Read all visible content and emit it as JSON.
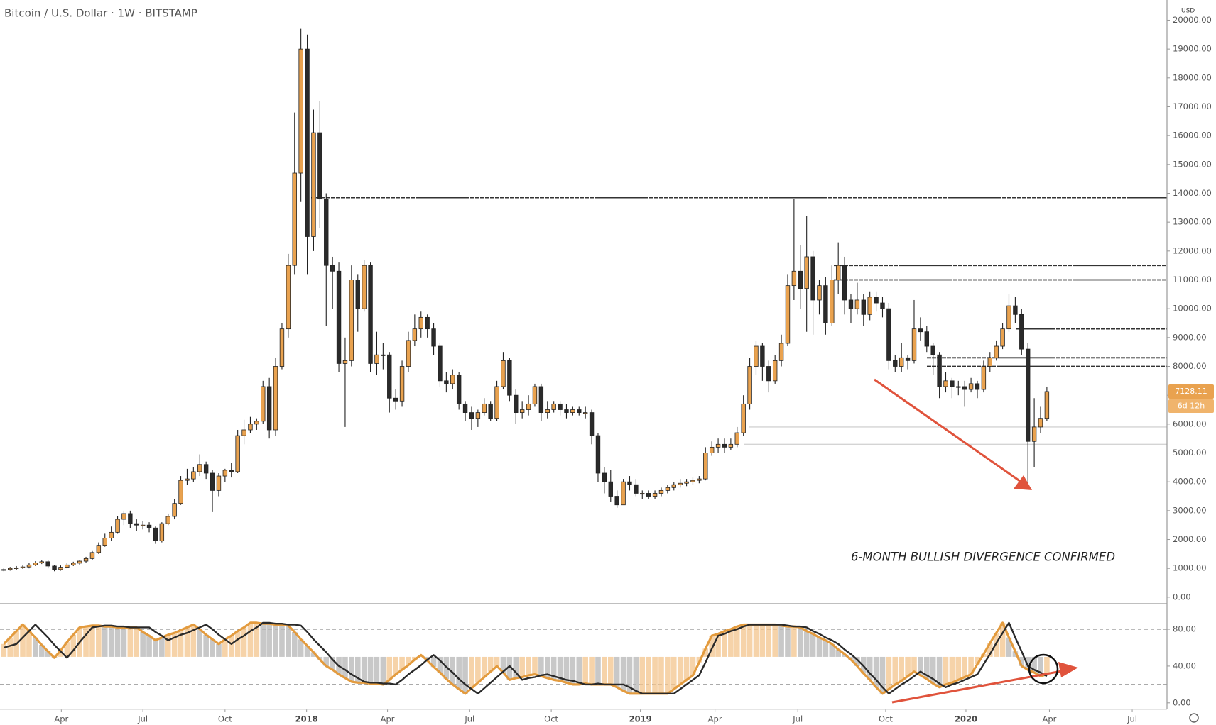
{
  "chart_data": [
    {
      "type": "candlestick",
      "title": "Bitcoin / U.S. Dollar · 1W · BITSTAMP",
      "currency": "USD",
      "annotation": "6-MONTH BULLISH DIVERGENCE CONFIRMED",
      "last_price": 7128.11,
      "countdown": "6d 12h",
      "up_color": "#e9a24f",
      "down_color": "#2a2a2a",
      "levels": [
        13850,
        11500,
        11000,
        9300,
        8300,
        8000
      ],
      "faint_levels": [
        5900,
        5300
      ],
      "xlim": [
        -0.6,
        184
      ],
      "xticks": [
        {
          "value": 9.1,
          "label": "Apr"
        },
        {
          "value": 22,
          "label": "Jul"
        },
        {
          "value": 35,
          "label": "Oct"
        },
        {
          "value": 47.9,
          "label": "2018"
        },
        {
          "value": 60.7,
          "label": "Apr"
        },
        {
          "value": 73.7,
          "label": "Jul"
        },
        {
          "value": 86.6,
          "label": "Oct"
        },
        {
          "value": 100.7,
          "label": "2019"
        },
        {
          "value": 112.5,
          "label": "Apr"
        },
        {
          "value": 125.6,
          "label": "Jul"
        },
        {
          "value": 139.5,
          "label": "Oct"
        },
        {
          "value": 152.2,
          "label": "2020"
        },
        {
          "value": 165.4,
          "label": "Apr"
        },
        {
          "value": 178.5,
          "label": "Jul"
        }
      ],
      "ylim": [
        -200,
        20700
      ],
      "yticks": [
        {
          "value": 0,
          "label": "0.00"
        },
        {
          "value": 1000,
          "label": "1000.00"
        },
        {
          "value": 2000,
          "label": "2000.00"
        },
        {
          "value": 3000,
          "label": "3000.00"
        },
        {
          "value": 4000,
          "label": "4000.00"
        },
        {
          "value": 5000,
          "label": "5000.00"
        },
        {
          "value": 6000,
          "label": "6000.00"
        },
        {
          "value": 7000,
          "label": "7000.00"
        },
        {
          "value": 8000,
          "label": "8000.00"
        },
        {
          "value": 9000,
          "label": "9000.00"
        },
        {
          "value": 10000,
          "label": "10000.00"
        },
        {
          "value": 11000,
          "label": "11000.00"
        },
        {
          "value": 12000,
          "label": "12000.00"
        },
        {
          "value": 13000,
          "label": "13000.00"
        },
        {
          "value": 14000,
          "label": "14000.00"
        },
        {
          "value": 15000,
          "label": "15000.00"
        },
        {
          "value": 16000,
          "label": "16000.00"
        },
        {
          "value": 17000,
          "label": "17000.00"
        },
        {
          "value": 18000,
          "label": "18000.00"
        },
        {
          "value": 19000,
          "label": "19000.00"
        },
        {
          "value": 20000,
          "label": "20000.00"
        }
      ],
      "open": [
        950,
        960,
        1000,
        1020,
        1050,
        1120,
        1190,
        1230,
        1080,
        960,
        1040,
        1120,
        1180,
        1250,
        1340,
        1550,
        1800,
        2050,
        2250,
        2700,
        2900,
        2550,
        2500,
        2500,
        2400,
        1950,
        2550,
        2800,
        3250,
        4050,
        4100,
        4350,
        4600,
        4300,
        3700,
        4200,
        4400,
        4350,
        5600,
        5800,
        6000,
        6100,
        7300,
        5800,
        8000,
        9300,
        11500,
        14700,
        19000,
        12500,
        16100,
        13800,
        11500,
        11300,
        8100,
        8200,
        11000,
        10000,
        11500,
        8100,
        8400,
        8400,
        6900,
        6800,
        8000,
        8900,
        9300,
        9700,
        9300,
        8700,
        7500,
        7400,
        7700,
        6700,
        6400,
        6200,
        6400,
        6700,
        6200,
        7300,
        8200,
        7000,
        6400,
        6500,
        6700,
        7300,
        6400,
        6500,
        6700,
        6500,
        6400,
        6500,
        6400,
        6400,
        5600,
        4300,
        4000,
        3500,
        3200,
        4000,
        3900,
        3600,
        3600,
        3500,
        3600,
        3700,
        3800,
        3900,
        3950,
        4000,
        4050,
        4100,
        5000,
        5200,
        5300,
        5200,
        5300,
        5700,
        6700,
        8000,
        8700,
        8000,
        7500,
        8200,
        8800,
        10800,
        11300,
        10700,
        11800,
        10300,
        10800,
        9500,
        11000,
        11500,
        10300,
        10000,
        10300,
        9800,
        10400,
        10200,
        10000,
        8200,
        8000,
        8300,
        8200,
        9300,
        9200,
        8700,
        8400,
        7300,
        7500,
        7300,
        7300,
        7200,
        7400,
        7200,
        8000,
        8300,
        8700,
        9300,
        10100,
        9800,
        8600,
        5400,
        5900,
        6200
      ],
      "high": [
        1000,
        1050,
        1080,
        1100,
        1180,
        1250,
        1300,
        1280,
        1120,
        1100,
        1180,
        1230,
        1300,
        1400,
        1600,
        1900,
        2200,
        2450,
        2800,
        3000,
        3000,
        2700,
        2650,
        2600,
        2450,
        2600,
        2900,
        3400,
        4200,
        4450,
        4500,
        4950,
        4700,
        4400,
        4300,
        4450,
        4650,
        5800,
        6150,
        6250,
        6200,
        7500,
        7600,
        8300,
        9500,
        11900,
        16800,
        19700,
        19500,
        16900,
        17200,
        14000,
        11800,
        11600,
        9000,
        11500,
        11200,
        11700,
        11600,
        9200,
        8800,
        8500,
        7200,
        8200,
        9200,
        9800,
        9900,
        9800,
        9500,
        8800,
        7800,
        7900,
        7800,
        6800,
        6600,
        6500,
        6900,
        6800,
        7500,
        8500,
        8300,
        7200,
        6800,
        7000,
        7400,
        7400,
        6800,
        6800,
        6800,
        6700,
        6600,
        6600,
        6600,
        6500,
        5700,
        4500,
        4400,
        3700,
        4100,
        4200,
        4100,
        3700,
        3700,
        3700,
        3800,
        3900,
        4000,
        4100,
        4100,
        4150,
        4200,
        5200,
        5400,
        5500,
        5500,
        5500,
        5900,
        7000,
        8300,
        8900,
        8800,
        8200,
        8400,
        9100,
        11200,
        13800,
        12200,
        13200,
        12000,
        11000,
        11100,
        11500,
        12300,
        11800,
        10500,
        10900,
        10500,
        10600,
        10600,
        10400,
        10200,
        8400,
        8800,
        8400,
        10300,
        9700,
        9400,
        8800,
        8500,
        7800,
        7600,
        7500,
        7500,
        7600,
        7500,
        8200,
        8500,
        8900,
        9500,
        10500,
        10400,
        10000,
        8800,
        6900,
        6600,
        7300
      ],
      "low": [
        900,
        920,
        950,
        980,
        1000,
        1080,
        1150,
        1000,
        900,
        920,
        1000,
        1080,
        1120,
        1200,
        1300,
        1500,
        1750,
        1950,
        2200,
        2500,
        2400,
        2300,
        2350,
        2250,
        1850,
        1900,
        2500,
        2700,
        3200,
        3900,
        4000,
        4200,
        4100,
        2950,
        3500,
        4000,
        4150,
        4300,
        5300,
        5700,
        5800,
        6000,
        5500,
        5600,
        7900,
        9000,
        11200,
        13700,
        11200,
        12000,
        12800,
        9400,
        10000,
        7800,
        5900,
        8000,
        9200,
        9900,
        7800,
        7700,
        7900,
        6400,
        6500,
        6600,
        7800,
        8700,
        9000,
        9000,
        8400,
        7300,
        7100,
        7200,
        6500,
        6100,
        5800,
        5900,
        6300,
        6100,
        6100,
        7200,
        6800,
        6000,
        6200,
        6300,
        6600,
        6100,
        6200,
        6400,
        6300,
        6200,
        6300,
        6300,
        6200,
        5300,
        4000,
        3600,
        3300,
        3100,
        3200,
        3700,
        3500,
        3400,
        3400,
        3400,
        3500,
        3600,
        3700,
        3800,
        3850,
        3900,
        3950,
        4050,
        4900,
        5000,
        5000,
        5100,
        5200,
        5600,
        6500,
        7700,
        7500,
        7100,
        7400,
        8000,
        8700,
        10300,
        10000,
        9200,
        9100,
        9800,
        9100,
        9400,
        10500,
        9800,
        9500,
        9800,
        9400,
        9600,
        9900,
        9700,
        7900,
        7800,
        7800,
        7900,
        8100,
        8900,
        8500,
        7700,
        6900,
        7100,
        6900,
        7000,
        6600,
        7100,
        6900,
        7100,
        7800,
        8200,
        8600,
        9200,
        9500,
        8400,
        3900,
        4500,
        5700,
        6100
      ],
      "close": [
        960,
        1000,
        1020,
        1050,
        1120,
        1190,
        1230,
        1080,
        960,
        1040,
        1120,
        1180,
        1250,
        1340,
        1550,
        1800,
        2050,
        2250,
        2700,
        2900,
        2550,
        2500,
        2500,
        2400,
        1950,
        2550,
        2800,
        3250,
        4050,
        4100,
        4350,
        4600,
        4300,
        3700,
        4200,
        4400,
        4350,
        5600,
        5800,
        6000,
        6100,
        7300,
        5800,
        8000,
        9300,
        11500,
        14700,
        19000,
        12500,
        16100,
        13800,
        11500,
        11300,
        8100,
        8200,
        11000,
        10000,
        11500,
        8100,
        8400,
        8400,
        6900,
        6800,
        8000,
        8900,
        9300,
        9700,
        9300,
        8700,
        7500,
        7400,
        7700,
        6700,
        6400,
        6200,
        6400,
        6700,
        6200,
        7300,
        8200,
        7000,
        6400,
        6500,
        6700,
        7300,
        6400,
        6500,
        6700,
        6500,
        6400,
        6500,
        6400,
        6400,
        5600,
        4300,
        4000,
        3500,
        3200,
        4000,
        3900,
        3600,
        3600,
        3500,
        3600,
        3700,
        3800,
        3900,
        3950,
        4000,
        4050,
        4100,
        5000,
        5200,
        5300,
        5200,
        5300,
        5700,
        6700,
        8000,
        8700,
        8000,
        7500,
        8200,
        8800,
        10800,
        11300,
        10700,
        11800,
        10300,
        10800,
        9500,
        11000,
        11500,
        10300,
        10000,
        10300,
        9800,
        10400,
        10200,
        10000,
        8200,
        8000,
        8300,
        8200,
        9300,
        9200,
        8700,
        8400,
        7300,
        7500,
        7300,
        7300,
        7200,
        7400,
        7200,
        8000,
        8300,
        8700,
        9300,
        10100,
        9800,
        8600,
        5400,
        5900,
        6200,
        7128.11
      ]
    },
    {
      "type": "line",
      "ylim": [
        -4,
        107
      ],
      "yticks": [
        {
          "value": 0,
          "label": "0.00"
        },
        {
          "value": 40,
          "label": "40.00"
        },
        {
          "value": 80,
          "label": "80.00"
        }
      ],
      "levels": [
        20,
        80
      ],
      "hist_colors": [
        "#f3c48c",
        "#b5b5b5"
      ],
      "series": [
        {
          "color": "#e39b3e",
          "values": [
            64,
            71,
            78,
            85,
            78,
            71,
            63,
            56,
            49,
            57,
            66,
            74,
            82,
            83,
            84,
            84,
            83,
            83,
            82,
            82,
            82,
            82,
            77,
            73,
            68,
            71,
            74,
            76,
            79,
            82,
            85,
            80,
            74,
            69,
            64,
            69,
            73,
            78,
            82,
            87,
            87,
            86,
            86,
            85,
            85,
            84,
            77,
            69,
            62,
            55,
            47,
            40,
            36,
            31,
            27,
            23,
            22,
            22,
            21,
            21,
            20,
            25,
            31,
            36,
            41,
            47,
            52,
            46,
            39,
            33,
            26,
            20,
            15,
            10,
            16,
            22,
            28,
            34,
            40,
            33,
            25,
            27,
            28,
            30,
            31,
            29,
            27,
            25,
            24,
            22,
            20,
            20,
            21,
            20,
            20,
            20,
            20,
            17,
            13,
            10,
            10,
            10,
            10,
            10,
            10,
            10,
            15,
            20,
            25,
            30,
            44,
            59,
            73,
            75,
            78,
            80,
            83,
            85,
            85,
            85,
            85,
            85,
            85,
            84,
            83,
            83,
            82,
            78,
            75,
            71,
            68,
            64,
            58,
            53,
            47,
            40,
            32,
            25,
            17,
            10,
            15,
            20,
            24,
            29,
            34,
            30,
            26,
            21,
            17,
            20,
            22,
            25,
            28,
            31,
            42,
            53,
            65,
            76,
            87,
            71,
            56,
            40,
            36,
            33,
            29,
            31
          ]
        },
        {
          "color": "#2a2a2a",
          "values": [
            60,
            62,
            64,
            71,
            78,
            85,
            78,
            71,
            63,
            56,
            49,
            57,
            66,
            74,
            82,
            83,
            84,
            84,
            83,
            83,
            82,
            82,
            82,
            82,
            77,
            73,
            68,
            71,
            74,
            76,
            79,
            82,
            85,
            80,
            74,
            69,
            64,
            69,
            73,
            78,
            82,
            87,
            87,
            86,
            86,
            85,
            85,
            84,
            77,
            69,
            62,
            55,
            47,
            40,
            36,
            31,
            27,
            23,
            22,
            22,
            21,
            21,
            20,
            25,
            31,
            36,
            41,
            47,
            52,
            46,
            39,
            33,
            26,
            20,
            15,
            10,
            16,
            22,
            28,
            34,
            40,
            33,
            25,
            27,
            28,
            30,
            31,
            29,
            27,
            25,
            24,
            22,
            20,
            20,
            21,
            20,
            20,
            20,
            20,
            17,
            13,
            10,
            10,
            10,
            10,
            10,
            10,
            15,
            20,
            25,
            30,
            44,
            59,
            73,
            75,
            78,
            80,
            83,
            85,
            85,
            85,
            85,
            85,
            85,
            84,
            83,
            83,
            82,
            78,
            75,
            71,
            68,
            64,
            58,
            53,
            47,
            40,
            32,
            25,
            17,
            10,
            15,
            20,
            24,
            29,
            34,
            30,
            26,
            21,
            17,
            20,
            22,
            25,
            28,
            31,
            42,
            53,
            65,
            76,
            87,
            71,
            56,
            40,
            36,
            33,
            29
          ]
        }
      ]
    }
  ]
}
